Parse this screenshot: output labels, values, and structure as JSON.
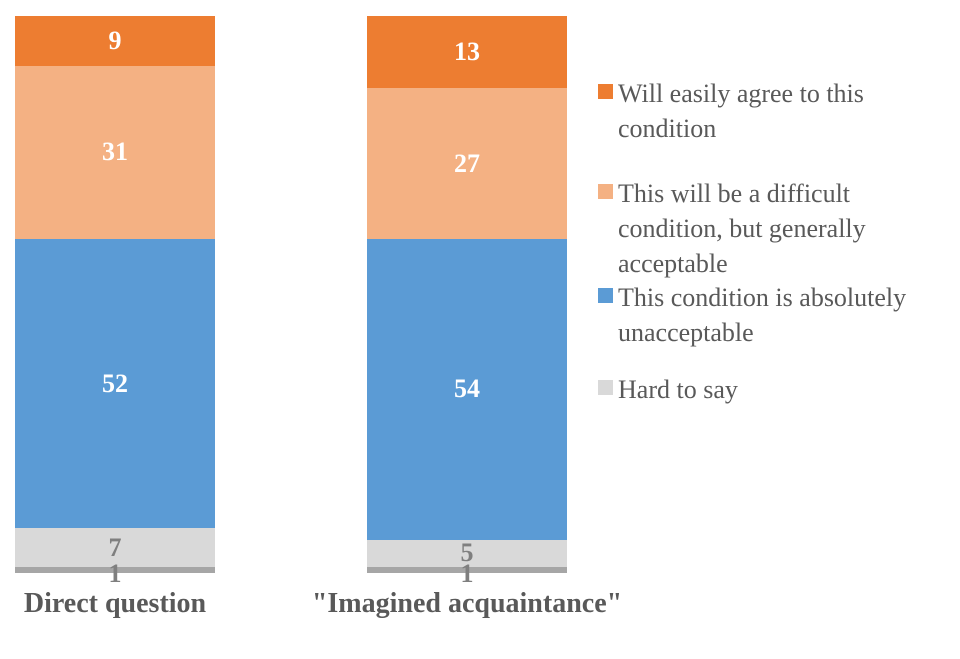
{
  "chart_data": {
    "type": "bar",
    "subtype": "stacked-column-100",
    "title": "",
    "xlabel": "",
    "ylabel": "",
    "ylim": [
      0,
      100
    ],
    "grid": false,
    "axes_visible": false,
    "legend_position": "right",
    "categories": [
      "Direct question",
      "\"Imagined acquaintance\""
    ],
    "series": [
      {
        "name": "Will easily agree to this condition",
        "values": [
          9,
          13
        ],
        "color": "#ED7D31",
        "label_color": "#FFFFFF"
      },
      {
        "name": "This will be a difficult condition, but generally acceptable",
        "values": [
          31,
          27
        ],
        "color": "#F4B183",
        "label_color": "#FFFFFF"
      },
      {
        "name": "This condition is absolutely unacceptable",
        "values": [
          52,
          54
        ],
        "color": "#5B9BD5",
        "label_color": "#FFFFFF"
      },
      {
        "name": "Hard to say",
        "values": [
          7,
          5
        ],
        "color": "#D9D9D9",
        "label_color": "#7F7F7F"
      },
      {
        "name": "",
        "values": [
          1,
          1
        ],
        "color": "#A6A6A6",
        "label_color": "#7F7F7F"
      }
    ],
    "legend_entries": [
      {
        "label": "Will easily agree to this\ncondition",
        "color": "#ED7D31"
      },
      {
        "label": "This will be a difficult\ncondition, but generally\nacceptable",
        "color": "#F4B183"
      },
      {
        "label": "This condition is absolutely\nunacceptable",
        "color": "#5B9BD5"
      },
      {
        "label": "Hard to say",
        "color": "#D9D9D9"
      }
    ],
    "category_label_color": "#595959",
    "legend_text_color": "#595959"
  }
}
